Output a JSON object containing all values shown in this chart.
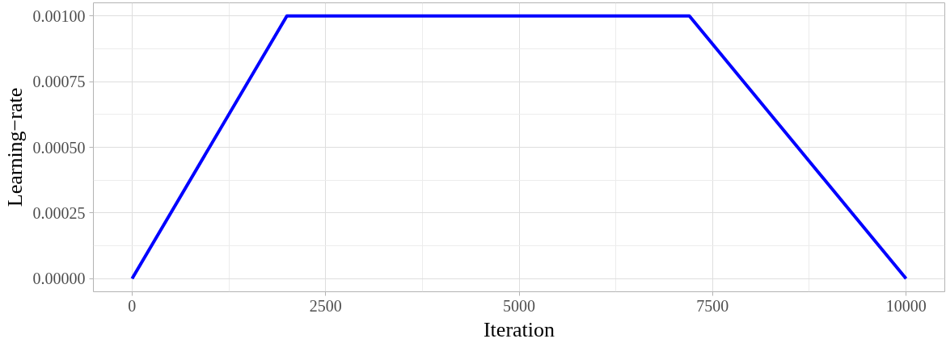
{
  "chart_data": {
    "type": "line",
    "xlabel": "Iteration",
    "ylabel": "Learning−rate",
    "x": [
      0,
      2000,
      7200,
      10000
    ],
    "series": [
      {
        "color": "#0000ff",
        "values": [
          0,
          0.001,
          0.001,
          0
        ]
      }
    ],
    "xlim": [
      -500,
      10500
    ],
    "ylim": [
      -5e-05,
      0.00105
    ],
    "xticks": [
      0,
      2500,
      5000,
      7500,
      10000
    ],
    "yticks": [
      {
        "value": 0,
        "label": "0.00000"
      },
      {
        "value": 0.00025,
        "label": "0.00025"
      },
      {
        "value": 0.0005,
        "label": "0.00050"
      },
      {
        "value": 0.00075,
        "label": "0.00075"
      },
      {
        "value": 0.001,
        "label": "0.00100"
      }
    ],
    "grid": true,
    "marker": "none",
    "line_style": "solid"
  }
}
